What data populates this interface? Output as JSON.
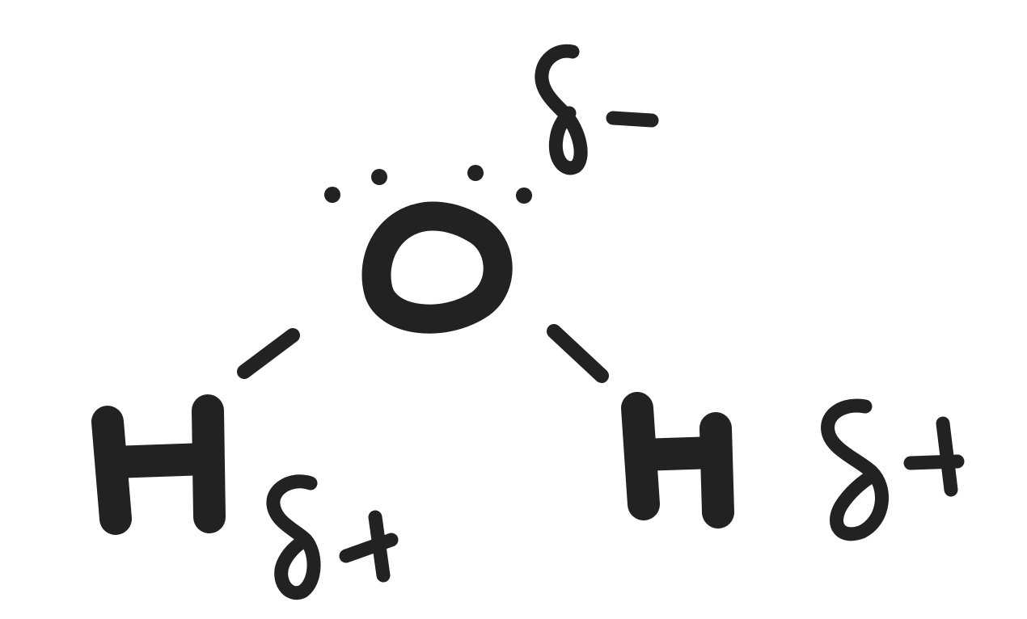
{
  "diagram": {
    "molecule": "H2O",
    "ink_color": "#222222",
    "background": "#ffffff",
    "atoms": [
      {
        "id": "oxygen",
        "symbol": "O",
        "partial_charge": "δ−"
      },
      {
        "id": "hydrogen_left",
        "symbol": "H",
        "partial_charge": "δ+"
      },
      {
        "id": "hydrogen_right",
        "symbol": "H",
        "partial_charge": "δ+"
      }
    ],
    "bonds": [
      {
        "from": "oxygen",
        "to": "hydrogen_left",
        "type": "single"
      },
      {
        "from": "oxygen",
        "to": "hydrogen_right",
        "type": "single"
      }
    ],
    "oxygen_lone_pairs": 2
  }
}
